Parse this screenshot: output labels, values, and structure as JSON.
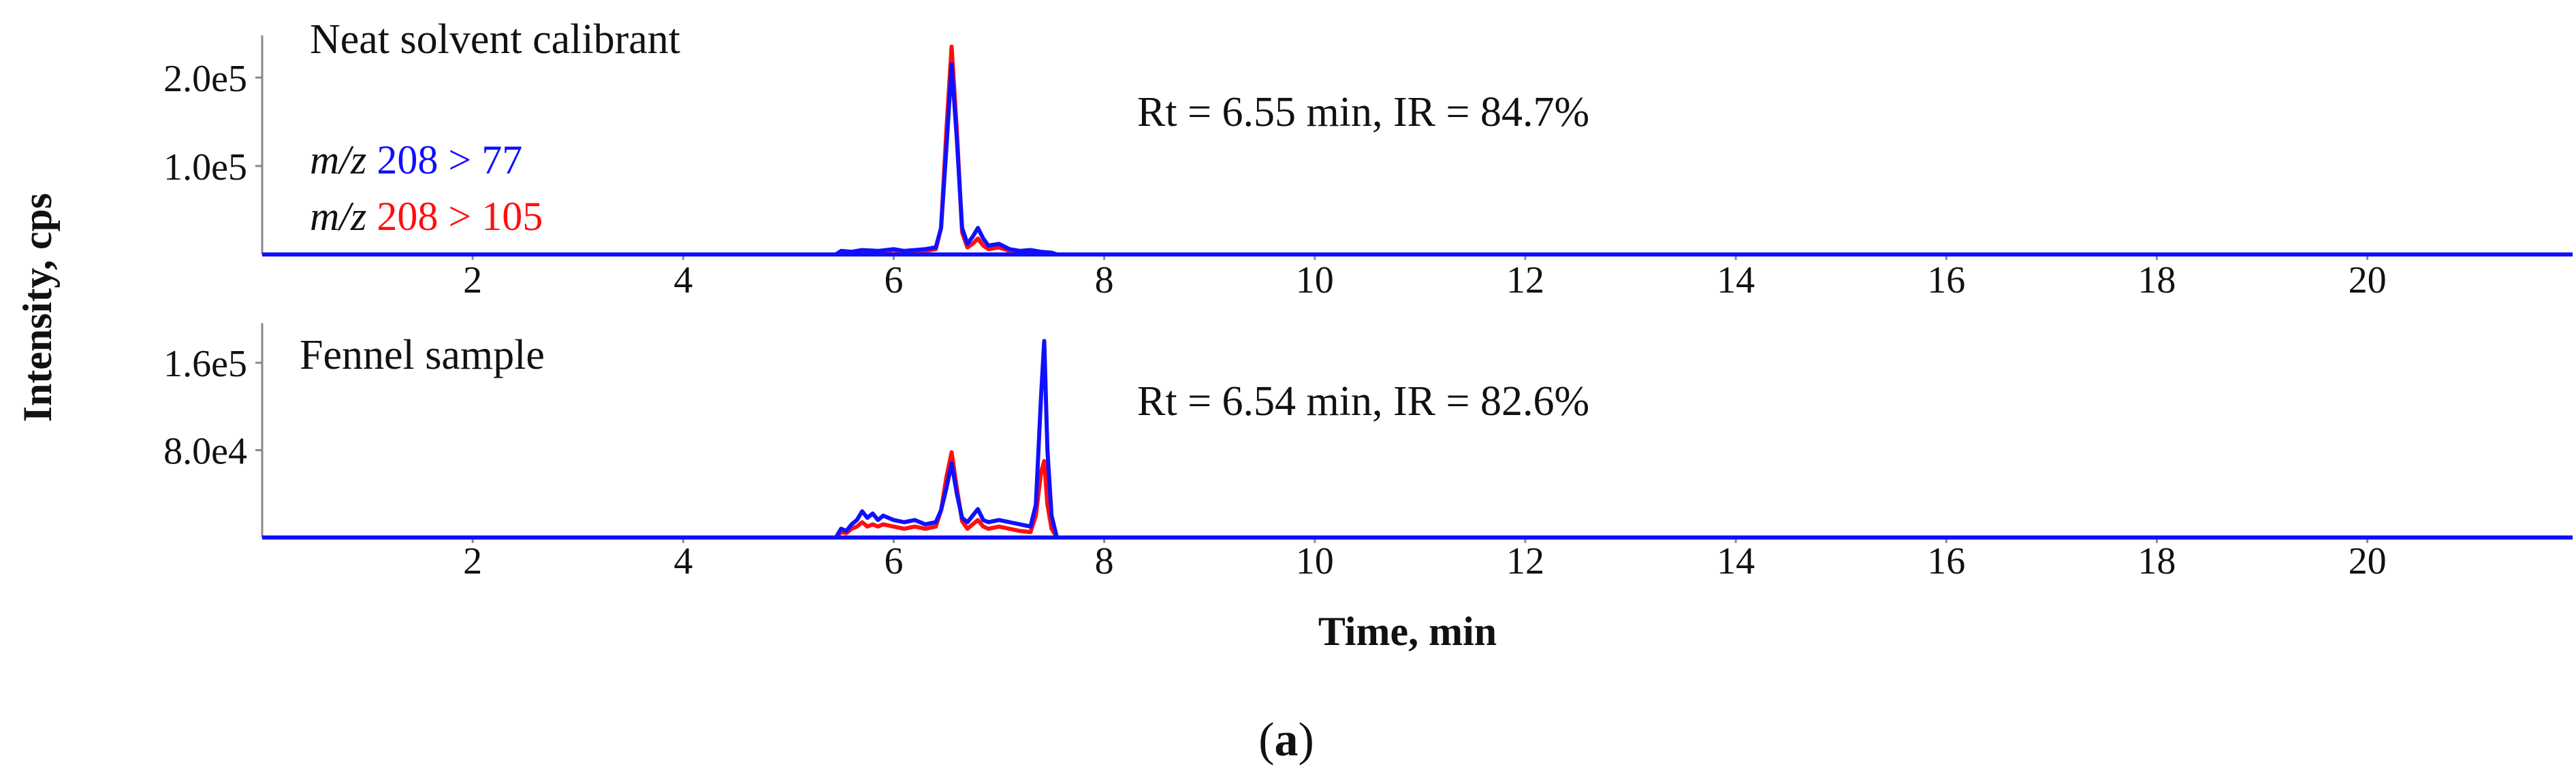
{
  "figure": {
    "y_axis_label": "Intensity, cps",
    "x_axis_label": "Time, min",
    "caption_open": "(",
    "caption_letter": "a",
    "caption_close": ")"
  },
  "colors": {
    "blue": "#1010ff",
    "red": "#ff0f0f",
    "axis": "#888888",
    "text": "#111111"
  },
  "chart_data": [
    {
      "type": "line",
      "title": "Neat solvent calibrant",
      "annotation": "Rt = 6.55 min, IR = 84.7%",
      "xlabel": "Time, min",
      "ylabel": "Intensity, cps",
      "xlim": [
        0,
        21.95
      ],
      "ylim": [
        0,
        240000
      ],
      "x_ticks": [
        2,
        4,
        6,
        8,
        10,
        12,
        14,
        16,
        18,
        20
      ],
      "y_ticks": [
        100000,
        200000
      ],
      "y_tick_labels": [
        "1.0e5",
        "2.0e5"
      ],
      "legend": [
        {
          "prefix": "m/z",
          "transition": "208 > 77",
          "color": "#1010ff"
        },
        {
          "prefix": "m/z",
          "transition": "208 > 105",
          "color": "#ff0f0f"
        }
      ],
      "series": [
        {
          "name": "m/z 208 > 77",
          "color": "#1010ff",
          "x": [
            0,
            5.45,
            5.5,
            5.6,
            5.7,
            5.85,
            6.0,
            6.1,
            6.2,
            6.3,
            6.4,
            6.45,
            6.5,
            6.55,
            6.6,
            6.65,
            6.7,
            6.75,
            6.8,
            6.85,
            6.9,
            7.0,
            7.1,
            7.2,
            7.3,
            7.4,
            7.5,
            7.55,
            21.95
          ],
          "y": [
            0,
            0,
            4000,
            3000,
            5000,
            4000,
            6000,
            4000,
            5000,
            6000,
            8000,
            30000,
            120000,
            215000,
            130000,
            30000,
            12000,
            20000,
            30000,
            18000,
            10000,
            12000,
            6000,
            4000,
            5000,
            3000,
            2000,
            0,
            0
          ]
        },
        {
          "name": "m/z 208 > 105",
          "color": "#ff0f0f",
          "x": [
            0,
            5.45,
            5.5,
            5.6,
            5.7,
            5.85,
            6.0,
            6.1,
            6.2,
            6.3,
            6.4,
            6.45,
            6.5,
            6.55,
            6.6,
            6.65,
            6.7,
            6.75,
            6.8,
            6.85,
            6.9,
            7.0,
            7.1,
            7.2,
            7.3,
            7.4,
            7.5,
            7.55,
            21.95
          ],
          "y": [
            0,
            0,
            3000,
            2500,
            4000,
            3000,
            5000,
            3000,
            4000,
            4000,
            6000,
            30000,
            140000,
            235000,
            140000,
            25000,
            8000,
            12000,
            18000,
            10000,
            6000,
            8000,
            4000,
            3000,
            3000,
            2000,
            1500,
            0,
            0
          ]
        }
      ]
    },
    {
      "type": "line",
      "title": "Fennel sample",
      "annotation": "Rt = 6.54 min, IR = 82.6%",
      "xlabel": "Time, min",
      "ylabel": "Intensity, cps",
      "xlim": [
        0,
        21.95
      ],
      "ylim": [
        0,
        190000
      ],
      "x_ticks": [
        2,
        4,
        6,
        8,
        10,
        12,
        14,
        16,
        18,
        20
      ],
      "y_ticks": [
        80000,
        160000
      ],
      "y_tick_labels": [
        "8.0e4",
        "1.6e5"
      ],
      "series": [
        {
          "name": "m/z 208 > 77",
          "color": "#1010ff",
          "x": [
            0,
            5.45,
            5.5,
            5.55,
            5.6,
            5.65,
            5.7,
            5.75,
            5.8,
            5.85,
            5.9,
            6.0,
            6.1,
            6.2,
            6.3,
            6.4,
            6.45,
            6.5,
            6.55,
            6.6,
            6.65,
            6.7,
            6.75,
            6.8,
            6.85,
            6.9,
            7.0,
            7.1,
            7.2,
            7.3,
            7.35,
            7.4,
            7.43,
            7.46,
            7.5,
            7.55,
            21.95
          ],
          "y": [
            0,
            0,
            8000,
            6000,
            12000,
            16000,
            24000,
            18000,
            22000,
            16000,
            20000,
            16000,
            14000,
            16000,
            12000,
            14000,
            25000,
            45000,
            68000,
            40000,
            18000,
            14000,
            20000,
            26000,
            16000,
            14000,
            16000,
            14000,
            12000,
            10000,
            30000,
            130000,
            180000,
            80000,
            20000,
            0,
            0
          ]
        },
        {
          "name": "m/z 208 > 105",
          "color": "#ff0f0f",
          "x": [
            0,
            5.45,
            5.5,
            5.55,
            5.6,
            5.65,
            5.7,
            5.75,
            5.8,
            5.85,
            5.9,
            6.0,
            6.1,
            6.2,
            6.3,
            6.4,
            6.45,
            6.5,
            6.55,
            6.6,
            6.65,
            6.7,
            6.75,
            6.8,
            6.85,
            6.9,
            7.0,
            7.1,
            7.2,
            7.3,
            7.35,
            7.4,
            7.43,
            7.46,
            7.5,
            7.55,
            21.95
          ],
          "y": [
            0,
            0,
            5000,
            4000,
            8000,
            10000,
            14000,
            10000,
            12000,
            10000,
            12000,
            10000,
            8000,
            10000,
            8000,
            10000,
            25000,
            55000,
            78000,
            45000,
            15000,
            8000,
            12000,
            16000,
            10000,
            8000,
            10000,
            8000,
            6000,
            5000,
            20000,
            60000,
            70000,
            30000,
            8000,
            0,
            0
          ]
        }
      ]
    }
  ]
}
